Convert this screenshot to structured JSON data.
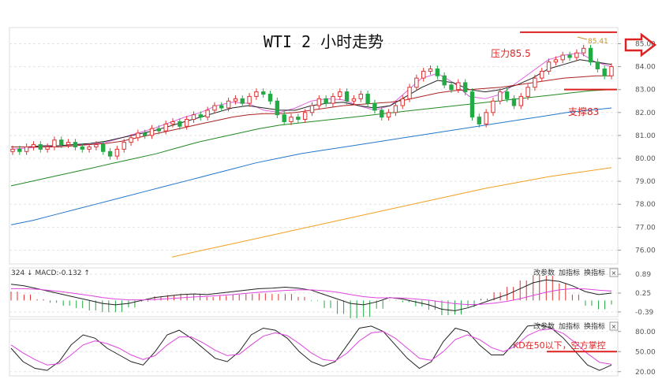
{
  "chart_data": [
    {
      "type": "candlestick",
      "title": "WTI 2 小时走势",
      "ylim": [
        75.5,
        85.6
      ],
      "yticks": [
        "85.00",
        "84.00",
        "83.00",
        "82.00",
        "81.00",
        "80.00",
        "79.00",
        "78.00",
        "77.00",
        "76.00"
      ],
      "ytick_values": [
        85,
        84,
        83,
        82,
        81,
        80,
        79,
        78,
        77,
        76
      ],
      "high_label": "85.41",
      "high_value": 85.41,
      "annotations": {
        "resistance_text": "压力85.5",
        "resistance_value": 85.5,
        "support_text": "支撑83",
        "support_value": 83.0
      },
      "close_series": [
        80.4,
        80.3,
        80.5,
        80.6,
        80.4,
        80.5,
        80.8,
        80.6,
        80.7,
        80.5,
        80.4,
        80.5,
        80.6,
        80.3,
        80.1,
        80.4,
        80.7,
        80.9,
        81.1,
        81.0,
        81.3,
        81.2,
        81.5,
        81.6,
        81.4,
        81.7,
        81.9,
        81.8,
        82.1,
        82.3,
        82.2,
        82.5,
        82.6,
        82.4,
        82.7,
        82.9,
        82.8,
        82.5,
        81.9,
        81.6,
        81.8,
        81.7,
        82.0,
        82.3,
        82.6,
        82.4,
        82.7,
        82.9,
        82.5,
        82.6,
        82.8,
        82.4,
        82.1,
        81.8,
        82.0,
        82.3,
        82.6,
        83.1,
        83.5,
        83.8,
        83.9,
        83.6,
        83.2,
        83.0,
        83.3,
        82.9,
        81.8,
        81.5,
        82.0,
        82.5,
        82.9,
        82.6,
        82.3,
        82.7,
        83.1,
        83.5,
        83.8,
        84.2,
        84.3,
        84.5,
        84.4,
        84.6,
        84.8,
        84.2,
        83.9,
        83.6,
        84.0
      ],
      "ma_series": [
        {
          "color": "#e060e0",
          "values": [
            80.4,
            80.45,
            80.5,
            80.55,
            80.6,
            80.6,
            80.7,
            80.9,
            81.1,
            81.3,
            81.55,
            81.8,
            82.0,
            82.3,
            82.45,
            82.4,
            82.1,
            82.0,
            82.2,
            82.5,
            82.6,
            82.55,
            82.3,
            82.1,
            82.3,
            82.9,
            83.5,
            83.7,
            83.3,
            82.7,
            82.6,
            82.8,
            83.3,
            83.8,
            84.3,
            84.5,
            84.6,
            84.2,
            84.0
          ]
        },
        {
          "color": "#222222",
          "values": [
            80.5,
            80.5,
            80.55,
            80.55,
            80.6,
            80.65,
            80.75,
            80.9,
            81.05,
            81.2,
            81.4,
            81.6,
            81.8,
            82.0,
            82.2,
            82.3,
            82.2,
            82.1,
            82.1,
            82.3,
            82.4,
            82.45,
            82.3,
            82.2,
            82.3,
            82.7,
            83.1,
            83.4,
            83.3,
            83.0,
            82.9,
            83.0,
            83.2,
            83.5,
            83.9,
            84.1,
            84.3,
            84.2,
            84.1
          ]
        },
        {
          "color": "#aa2222",
          "values": [
            80.5,
            80.5,
            80.5,
            80.5,
            80.55,
            80.6,
            80.65,
            80.75,
            80.9,
            81.05,
            81.2,
            81.35,
            81.5,
            81.65,
            81.8,
            81.9,
            81.95,
            81.95,
            82.0,
            82.1,
            82.2,
            82.3,
            82.35,
            82.4,
            82.45,
            82.55,
            82.7,
            82.85,
            82.95,
            83.0,
            83.05,
            83.1,
            83.2,
            83.3,
            83.4,
            83.5,
            83.55,
            83.6,
            83.6
          ]
        },
        {
          "color": "#228822",
          "values": [
            78.8,
            79.0,
            79.2,
            79.4,
            79.6,
            79.8,
            80.0,
            80.2,
            80.45,
            80.7,
            80.9,
            81.1,
            81.3,
            81.45,
            81.55,
            81.65,
            81.75,
            81.85,
            81.95,
            82.05,
            82.15,
            82.25,
            82.35,
            82.45,
            82.55,
            82.65,
            82.75,
            82.85,
            82.95,
            83.0
          ]
        },
        {
          "color": "#2277cc",
          "values": [
            77.1,
            77.3,
            77.55,
            77.8,
            78.05,
            78.3,
            78.55,
            78.8,
            79.05,
            79.3,
            79.55,
            79.8,
            80.0,
            80.2,
            80.35,
            80.5,
            80.65,
            80.8,
            80.95,
            81.1,
            81.25,
            81.4,
            81.55,
            81.7,
            81.85,
            82.0,
            82.1,
            82.2
          ]
        },
        {
          "color": "#f0a020",
          "values": [
            75.7,
            76.0,
            76.3,
            76.6,
            76.9,
            77.2,
            77.5,
            77.8,
            78.1,
            78.4,
            78.7,
            78.95,
            79.2,
            79.4,
            79.6
          ]
        }
      ]
    },
    {
      "type": "macd",
      "legend": "324 ↓ MACD:-0.132 ↑",
      "ylim": [
        -0.5,
        1.0
      ],
      "yticks": [
        "0.89",
        "0.25",
        "-0.39"
      ],
      "ytick_values": [
        0.89,
        0.25,
        -0.39
      ],
      "dif": [
        0.55,
        0.5,
        0.4,
        0.3,
        0.2,
        0.1,
        0.0,
        -0.1,
        -0.15,
        -0.1,
        0.0,
        0.1,
        0.15,
        0.2,
        0.22,
        0.2,
        0.25,
        0.3,
        0.35,
        0.4,
        0.42,
        0.45,
        0.42,
        0.35,
        0.2,
        0.05,
        -0.1,
        -0.15,
        -0.05,
        0.1,
        0.05,
        -0.05,
        -0.15,
        -0.3,
        -0.35,
        -0.25,
        -0.1,
        0.05,
        0.2,
        0.4,
        0.6,
        0.7,
        0.65,
        0.5,
        0.3,
        0.2,
        0.25
      ],
      "dea": [
        0.4,
        0.4,
        0.38,
        0.34,
        0.29,
        0.23,
        0.17,
        0.1,
        0.05,
        0.02,
        0.02,
        0.03,
        0.06,
        0.09,
        0.12,
        0.14,
        0.17,
        0.2,
        0.24,
        0.28,
        0.31,
        0.34,
        0.36,
        0.36,
        0.33,
        0.28,
        0.2,
        0.13,
        0.09,
        0.09,
        0.08,
        0.05,
        0.01,
        -0.05,
        -0.11,
        -0.14,
        -0.13,
        -0.09,
        -0.03,
        0.06,
        0.17,
        0.28,
        0.36,
        0.4,
        0.39,
        0.35,
        0.32
      ]
    },
    {
      "type": "kd",
      "ylim": [
        15,
        95
      ],
      "yticks": [
        "80.00",
        "50.00",
        "20.00"
      ],
      "ytick_values": [
        80,
        50,
        20
      ],
      "annotation_text": "KD在50以下，空方掌控",
      "annotation_value": 50,
      "k": [
        55,
        35,
        25,
        22,
        35,
        60,
        75,
        70,
        55,
        45,
        35,
        30,
        50,
        75,
        82,
        70,
        55,
        40,
        35,
        50,
        75,
        85,
        82,
        70,
        50,
        35,
        28,
        35,
        60,
        85,
        88,
        80,
        60,
        40,
        25,
        35,
        65,
        85,
        80,
        60,
        45,
        45,
        65,
        88,
        90,
        85,
        70,
        50,
        30,
        22,
        30
      ],
      "d": [
        60,
        48,
        38,
        30,
        32,
        45,
        60,
        66,
        62,
        55,
        45,
        38,
        44,
        60,
        72,
        72,
        63,
        52,
        44,
        46,
        60,
        73,
        78,
        74,
        62,
        48,
        38,
        36,
        48,
        66,
        78,
        80,
        70,
        55,
        40,
        37,
        50,
        68,
        75,
        68,
        56,
        50,
        58,
        74,
        82,
        84,
        77,
        63,
        47,
        34,
        31
      ]
    }
  ],
  "toolbar": {
    "params_label": "改参数",
    "add_indicator_label": "加指标",
    "switch_indicator_label": "换指标",
    "close_symbol": "✕"
  }
}
